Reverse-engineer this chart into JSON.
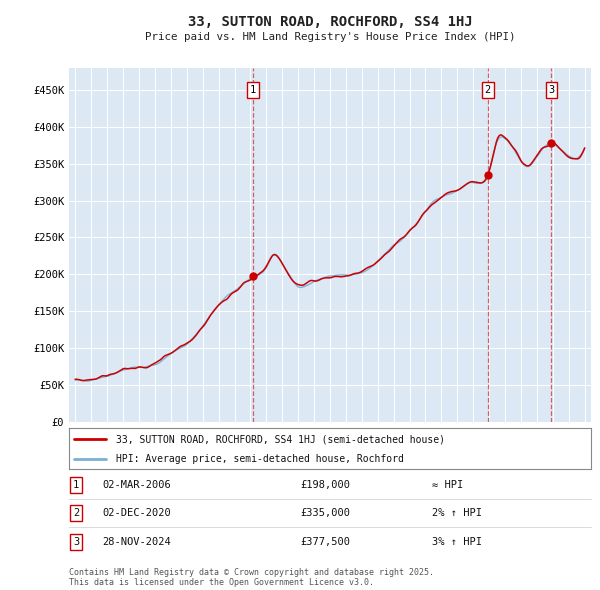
{
  "title": "33, SUTTON ROAD, ROCHFORD, SS4 1HJ",
  "subtitle": "Price paid vs. HM Land Registry's House Price Index (HPI)",
  "fig_bg_color": "#ffffff",
  "background_color": "#dce9f5",
  "hpi_line_color": "#7ab0d4",
  "price_line_color": "#cc0000",
  "grid_color": "#ffffff",
  "vline_color": "#cc0000",
  "ylim": [
    0,
    480000
  ],
  "yticks": [
    0,
    50000,
    100000,
    150000,
    200000,
    250000,
    300000,
    350000,
    400000,
    450000
  ],
  "ytick_labels": [
    "£0",
    "£50K",
    "£100K",
    "£150K",
    "£200K",
    "£250K",
    "£300K",
    "£350K",
    "£400K",
    "£450K"
  ],
  "xlim_start": 1994.6,
  "xlim_end": 2027.4,
  "year_start": 1995,
  "year_end": 2027,
  "transactions": [
    {
      "year": 2006.17,
      "price": 198000,
      "label": "1"
    },
    {
      "year": 2020.92,
      "price": 335000,
      "label": "2"
    },
    {
      "year": 2024.91,
      "price": 377500,
      "label": "3"
    }
  ],
  "legend_entries": [
    {
      "color": "#cc0000",
      "label": "33, SUTTON ROAD, ROCHFORD, SS4 1HJ (semi-detached house)"
    },
    {
      "color": "#7ab0d4",
      "label": "HPI: Average price, semi-detached house, Rochford"
    }
  ],
  "table_rows": [
    {
      "num": "1",
      "date": "02-MAR-2006",
      "price": "£198,000",
      "rel": "≈ HPI"
    },
    {
      "num": "2",
      "date": "02-DEC-2020",
      "price": "£335,000",
      "rel": "2% ↑ HPI"
    },
    {
      "num": "3",
      "date": "28-NOV-2024",
      "price": "£377,500",
      "rel": "3% ↑ HPI"
    }
  ],
  "footnote": "Contains HM Land Registry data © Crown copyright and database right 2025.\nThis data is licensed under the Open Government Licence v3.0."
}
